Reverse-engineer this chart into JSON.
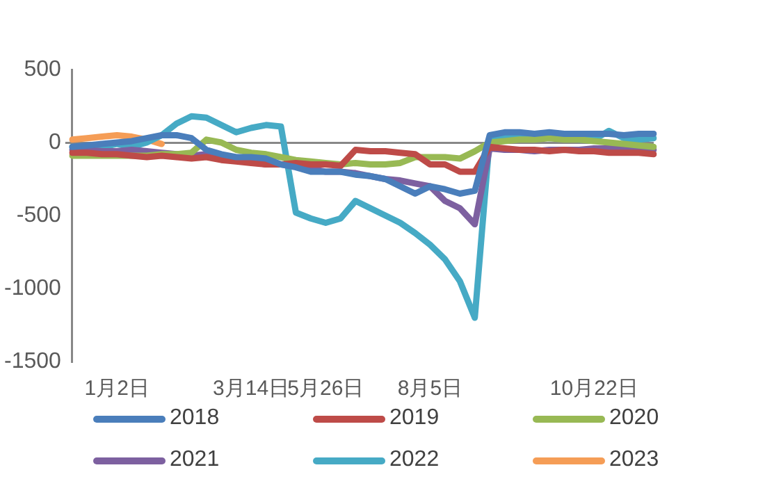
{
  "chart_data": {
    "type": "line",
    "categories": [
      null,
      null,
      null,
      "1月2日",
      null,
      null,
      null,
      null,
      null,
      null,
      null,
      null,
      "3月14日",
      null,
      null,
      null,
      null,
      "5月26日",
      null,
      null,
      null,
      null,
      null,
      null,
      "8月5日",
      null,
      null,
      null,
      null,
      null,
      null,
      null,
      null,
      null,
      null,
      "10月22日",
      null,
      null,
      null,
      null
    ],
    "series": [
      {
        "name": "2018",
        "color": "#4a7ebb",
        "values": [
          -30,
          -20,
          -10,
          0,
          10,
          30,
          50,
          50,
          30,
          -50,
          -80,
          -100,
          -100,
          -110,
          -150,
          -170,
          -200,
          -200,
          -200,
          -220,
          -230,
          -250,
          -300,
          -350,
          -300,
          -320,
          -350,
          -330,
          50,
          70,
          70,
          60,
          70,
          60,
          60,
          60,
          60,
          50,
          60,
          60
        ]
      },
      {
        "name": "2019",
        "color": "#be4b48",
        "values": [
          -70,
          -70,
          -80,
          -80,
          -90,
          -100,
          -90,
          -100,
          -110,
          -100,
          -120,
          -130,
          -140,
          -150,
          -150,
          -140,
          -150,
          -150,
          -160,
          -50,
          -60,
          -60,
          -70,
          -80,
          -150,
          -150,
          -200,
          -200,
          -30,
          -40,
          -50,
          -50,
          -60,
          -50,
          -60,
          -60,
          -70,
          -70,
          -70,
          -80
        ]
      },
      {
        "name": "2020",
        "color": "#98b954",
        "values": [
          -90,
          -90,
          -90,
          -90,
          -90,
          -90,
          -80,
          -80,
          -70,
          20,
          0,
          -50,
          -70,
          -80,
          -100,
          -120,
          -130,
          -140,
          -150,
          -140,
          -150,
          -150,
          -140,
          -100,
          -100,
          -100,
          -110,
          -60,
          0,
          10,
          20,
          20,
          30,
          20,
          20,
          10,
          0,
          -10,
          -20,
          -30
        ]
      },
      {
        "name": "2021",
        "color": "#7d60a0",
        "values": [
          -50,
          -50,
          -60,
          -60,
          -50,
          -60,
          -70,
          -80,
          -90,
          -80,
          -100,
          -120,
          -130,
          -150,
          -150,
          -160,
          -180,
          -200,
          -200,
          -210,
          -230,
          -250,
          -260,
          -280,
          -300,
          -400,
          -450,
          -560,
          -40,
          -50,
          -50,
          -60,
          -50,
          -50,
          -50,
          -40,
          -40,
          -40,
          -50,
          -50
        ]
      },
      {
        "name": "2022",
        "color": "#46aac5",
        "values": [
          -30,
          -50,
          -30,
          -10,
          -30,
          0,
          50,
          130,
          180,
          170,
          120,
          70,
          100,
          120,
          110,
          -480,
          -520,
          -550,
          -520,
          -400,
          -450,
          -500,
          -550,
          -620,
          -700,
          -800,
          -950,
          -1200,
          30,
          50,
          40,
          40,
          30,
          30,
          20,
          20,
          80,
          30,
          20,
          30
        ]
      },
      {
        "name": "2023",
        "color": "#f59d56",
        "values": [
          20,
          30,
          40,
          50,
          40,
          20,
          -10,
          null,
          null,
          null,
          null,
          null,
          null,
          null,
          null,
          null,
          null,
          null,
          null,
          null,
          null,
          null,
          null,
          null,
          null,
          null,
          null,
          null,
          null,
          null,
          null,
          null,
          null,
          null,
          null,
          null,
          null,
          null,
          null,
          null
        ]
      }
    ],
    "ylim": [
      -1500,
      500
    ],
    "yticks": [
      500,
      0,
      -500,
      -1000,
      -1500
    ],
    "legend": "bottom"
  }
}
